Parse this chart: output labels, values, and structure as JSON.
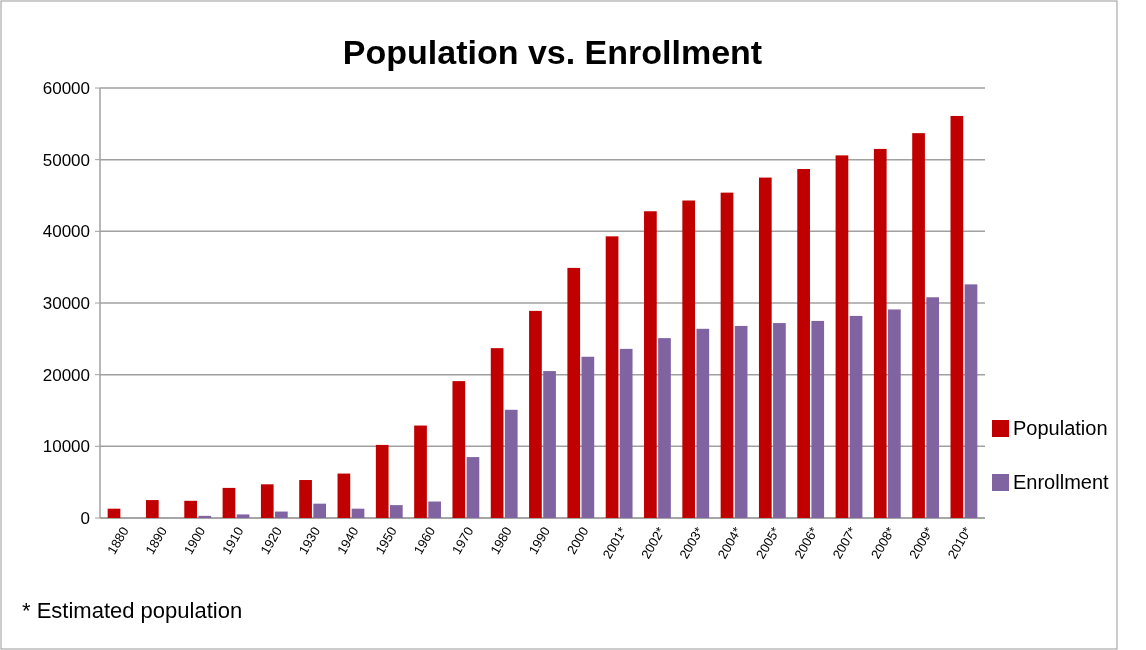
{
  "chart_data": {
    "type": "bar",
    "title": "Population vs. Enrollment",
    "categories": [
      "1880",
      "1890",
      "1900",
      "1910",
      "1920",
      "1930",
      "1940",
      "1950",
      "1960",
      "1970",
      "1980",
      "1990",
      "2000",
      "2001*",
      "2002*",
      "2003*",
      "2004*",
      "2005*",
      "2006*",
      "2007*",
      "2008*",
      "2009*",
      "2010*"
    ],
    "series": [
      {
        "name": "Population",
        "color": "#c00000",
        "values": [
          1300,
          2500,
          2400,
          4200,
          4700,
          5300,
          6200,
          10200,
          12900,
          19100,
          23700,
          28900,
          34900,
          39300,
          42800,
          44300,
          45400,
          47500,
          48700,
          50600,
          51500,
          53700,
          56100
        ]
      },
      {
        "name": "Enrollment",
        "color": "#8064a2",
        "values": [
          0,
          0,
          300,
          500,
          900,
          2000,
          1300,
          1800,
          2300,
          8500,
          15100,
          20500,
          22500,
          23600,
          25100,
          26400,
          26800,
          27200,
          27500,
          28200,
          29100,
          30800,
          32600
        ]
      }
    ],
    "ylim": [
      0,
      60000
    ],
    "yticks": [
      0,
      10000,
      20000,
      30000,
      40000,
      50000,
      60000
    ],
    "grid": "y",
    "legend": "right",
    "annotations": [
      "* Estimated population"
    ]
  }
}
